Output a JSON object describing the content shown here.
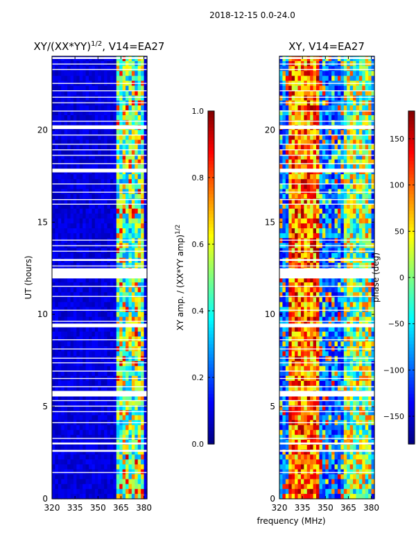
{
  "figure": {
    "suptitle": "2018-12-15 0.0-24.0",
    "shared_xlabel": "frequency (MHz)"
  },
  "chart_data": [
    {
      "type": "heatmap",
      "title": "XY/(XX*YY)^1/2, V14=EA27",
      "title_main": "XY/(XX*YY)",
      "title_sup": "1/2",
      "title_tail": ", V14=EA27",
      "xlabel": "",
      "ylabel": "UT (hours)",
      "xlim": [
        320,
        382
      ],
      "ylim": [
        0,
        24
      ],
      "xticks": [
        320,
        335,
        350,
        365,
        380
      ],
      "yticks": [
        0,
        5,
        10,
        15,
        20
      ],
      "colorbar": {
        "label": "XY amp. / (XX*YY amp)^1/2",
        "label_main": "XY amp. / (XX*YY amp)",
        "label_sup": "1/2",
        "range": [
          0.0,
          1.0
        ],
        "ticks": [
          "0.0",
          "0.2",
          "0.4",
          "0.6",
          "0.8",
          "1.0"
        ],
        "tick_values": [
          0.0,
          0.2,
          0.4,
          0.6,
          0.8,
          1.0
        ],
        "colormap": "jet"
      }
    },
    {
      "type": "heatmap",
      "title": "XY, V14=EA27",
      "xlabel": "frequency (MHz)",
      "ylabel": "",
      "xlim": [
        320,
        382
      ],
      "ylim": [
        0,
        24
      ],
      "xticks": [
        320,
        335,
        350,
        365,
        380
      ],
      "yticks": [
        0,
        5,
        10,
        15,
        20
      ],
      "colorbar": {
        "label": "phase (deg)",
        "range": [
          -180,
          180
        ],
        "ticks": [
          "−150",
          "−100",
          "−50",
          "0",
          "50",
          "100",
          "150"
        ],
        "tick_values": [
          -150,
          -100,
          -50,
          0,
          50,
          100,
          150
        ],
        "colormap": "jet"
      }
    }
  ],
  "gaps_ut_hours": [
    [
      0.0,
      0.02
    ],
    [
      1.4,
      1.45
    ],
    [
      2.55,
      2.65
    ],
    [
      2.95,
      3.05
    ],
    [
      3.25,
      3.3
    ],
    [
      4.1,
      4.15
    ],
    [
      4.7,
      4.75
    ],
    [
      5.0,
      5.05
    ],
    [
      5.3,
      5.35
    ],
    [
      5.55,
      5.85
    ],
    [
      6.05,
      6.1
    ],
    [
      6.5,
      6.55
    ],
    [
      6.9,
      6.95
    ],
    [
      7.35,
      7.4
    ],
    [
      7.6,
      7.65
    ],
    [
      8.1,
      8.15
    ],
    [
      8.6,
      8.65
    ],
    [
      9.3,
      9.5
    ],
    [
      9.6,
      9.65
    ],
    [
      10.2,
      10.25
    ],
    [
      10.95,
      11.0
    ],
    [
      11.5,
      11.55
    ],
    [
      11.95,
      12.5
    ],
    [
      12.6,
      12.65
    ],
    [
      12.9,
      13.0
    ],
    [
      13.4,
      13.45
    ],
    [
      13.7,
      13.75
    ],
    [
      14.0,
      14.05
    ],
    [
      15.95,
      16.0
    ],
    [
      16.2,
      16.25
    ],
    [
      16.6,
      16.65
    ],
    [
      17.05,
      17.1
    ],
    [
      17.7,
      17.9
    ],
    [
      18.15,
      18.2
    ],
    [
      18.6,
      18.65
    ],
    [
      18.9,
      18.95
    ],
    [
      19.2,
      19.25
    ],
    [
      19.7,
      19.75
    ],
    [
      20.05,
      20.25
    ],
    [
      20.45,
      20.5
    ],
    [
      21.0,
      21.05
    ],
    [
      21.45,
      21.5
    ],
    [
      21.75,
      21.8
    ],
    [
      22.1,
      22.15
    ],
    [
      22.5,
      22.55
    ],
    [
      23.25,
      23.3
    ],
    [
      23.55,
      23.6
    ],
    [
      23.85,
      23.95
    ]
  ]
}
